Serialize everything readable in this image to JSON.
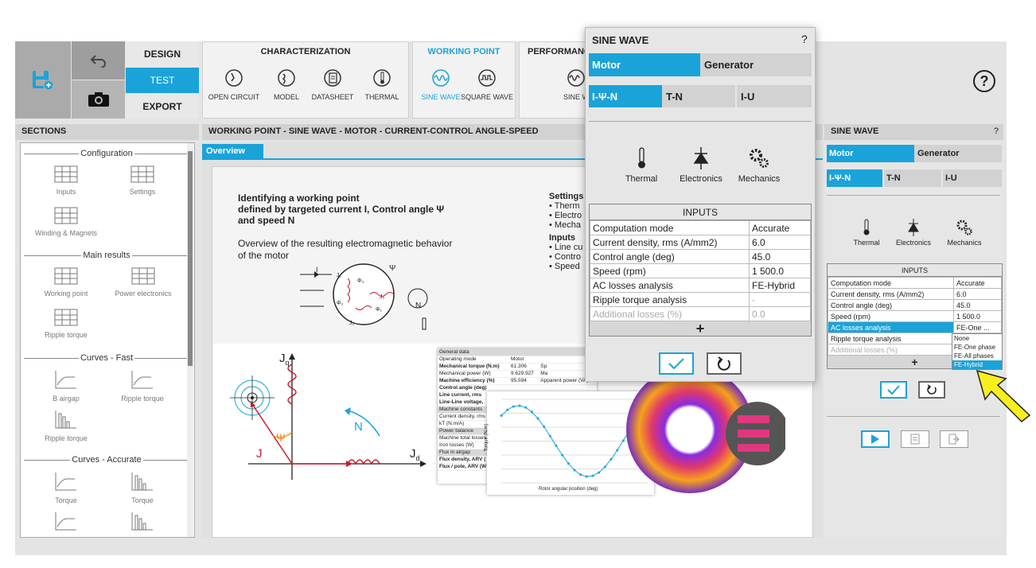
{
  "toolbar": {
    "design": "DESIGN",
    "test": "TEST",
    "export": "EXPORT"
  },
  "groups": {
    "characterization": {
      "title": "CHARACTERIZATION",
      "items": [
        "OPEN CIRCUIT",
        "MODEL",
        "DATASHEET",
        "THERMAL"
      ]
    },
    "working_point": {
      "title": "WORKING POINT",
      "items": [
        "SINE WAVE",
        "SQUARE WAVE"
      ]
    },
    "performance": {
      "title": "PERFORMANC",
      "items": [
        "SINE W"
      ]
    }
  },
  "sections": {
    "title": "SECTIONS",
    "configuration": "Configuration",
    "inputs": "Inputs",
    "settings": "Settings",
    "winding": "Winding & Magnets",
    "main_results": "Main results",
    "working_point": "Working point",
    "power_electronics": "Power electronics",
    "ripple_torque": "Ripple torque",
    "curves_fast": "Curves - Fast",
    "b_airgap": "B airgap",
    "ripple_torque_fast": "Ripple torque",
    "ripple_torque_fast2": "Ripple torque",
    "curves_accurate": "Curves - Accurate",
    "torque1": "Torque",
    "torque2": "Torque"
  },
  "main": {
    "title": "WORKING POINT - SINE WAVE - MOTOR - CURRENT-CONTROL ANGLE-SPEED",
    "tab": "Overview",
    "heading1": "Identifying a working point",
    "heading2": "defined by targeted current I, Control angle Ψ",
    "heading3": "and speed N",
    "para1": "Overview of the resulting electromagnetic behavior",
    "para2": "of the motor",
    "settings_title": "Settings",
    "settings": [
      "Therm",
      "Electro",
      "Mecha"
    ],
    "inputs_title": "Inputs",
    "inputs": [
      "Line cu",
      "Contro",
      "Speed"
    ],
    "diagram": {
      "I": "I",
      "psi": "Ψ",
      "N": "N",
      "J1": "J₁",
      "J2": "J₂",
      "J3": "J₃",
      "phi1": "Φ₁",
      "phi2": "Φ₂",
      "phi3": "Φ₃"
    },
    "vector": {
      "Jq": "J",
      "Jq_sub": "q",
      "Jd": "J",
      "Jd_sub": "d",
      "J": "J",
      "psi": "Ψ",
      "N": "N"
    },
    "table_rows": [
      [
        "General data",
        "",
        ""
      ],
      [
        "Operating mode",
        "Motor",
        ""
      ],
      [
        "Mechanical torque (N.m)",
        "61.306",
        "Sp"
      ],
      [
        "Mechanical power (W)",
        "9 629.927",
        "Ma"
      ],
      [
        "Machine efficiency (%)",
        "95.594",
        "Apparent power (VA)"
      ],
      [
        "Control angle (deg)",
        "",
        ""
      ],
      [
        "Line current, rms",
        "",
        ""
      ],
      [
        "Line-Line voltage,",
        "",
        ""
      ],
      [
        "Machine constants",
        "",
        ""
      ],
      [
        "Current density, rms",
        "",
        ""
      ],
      [
        "kT (N.m/A)",
        "",
        ""
      ],
      [
        "Power balance",
        "",
        ""
      ],
      [
        "Machine total losses",
        "",
        ""
      ],
      [
        "Iron losses (W)",
        "",
        ""
      ],
      [
        "Flux in airgap",
        "",
        ""
      ],
      [
        "Flux density, ARV (",
        "",
        ""
      ],
      [
        "Flux / pole, ARV (W",
        "",
        ""
      ]
    ],
    "plot": {
      "xlabel": "Rotor angular position (deg)",
      "ylabel": "Torque (N.m)"
    }
  },
  "dialog": {
    "title": "SINE WAVE",
    "help": "?",
    "tabs1": [
      "Motor",
      "Generator"
    ],
    "tabs2": [
      "I-Ψ-N",
      "T-N",
      "I-U"
    ],
    "thermal": "Thermal",
    "electronics": "Electronics",
    "mechanics": "Mechanics",
    "inputs_title": "INPUTS",
    "rows": [
      [
        "Computation mode",
        "Accurate"
      ],
      [
        "Current density, rms (A/mm2)",
        "6.0"
      ],
      [
        "Control angle (deg)",
        "45.0"
      ],
      [
        "Speed (rpm)",
        "1 500.0"
      ],
      [
        "AC losses analysis",
        "FE-Hybrid"
      ],
      [
        "Ripple torque analysis",
        "-"
      ],
      [
        "Additional losses (%)",
        "0.0"
      ]
    ],
    "add": "+"
  },
  "right": {
    "title": "SINE WAVE",
    "help": "?",
    "tabs1": [
      "Motor",
      "Generator"
    ],
    "tabs2": [
      "I-Ψ-N",
      "T-N",
      "I-U"
    ],
    "thermal": "Thermal",
    "electronics": "Electronics",
    "mechanics": "Mechanics",
    "inputs_title": "INPUTS",
    "rows": [
      [
        "Computation mode",
        "Accurate"
      ],
      [
        "Current density, rms (A/mm2)",
        "6.0"
      ],
      [
        "Control angle (deg)",
        "45.0"
      ],
      [
        "Speed (rpm)",
        "1 500.0"
      ],
      [
        "AC losses analysis",
        "FE-One ..."
      ],
      [
        "Ripple torque analysis",
        ""
      ],
      [
        "Additional losses (%)",
        ""
      ]
    ],
    "dropdown": [
      "None",
      "FE-One phase",
      "FE-All phases",
      "FE-Hybrid"
    ],
    "add": "+"
  },
  "colors": {
    "accent": "#1aa3d9",
    "coil": "#d0162c",
    "arrow": "#f7f01d"
  }
}
